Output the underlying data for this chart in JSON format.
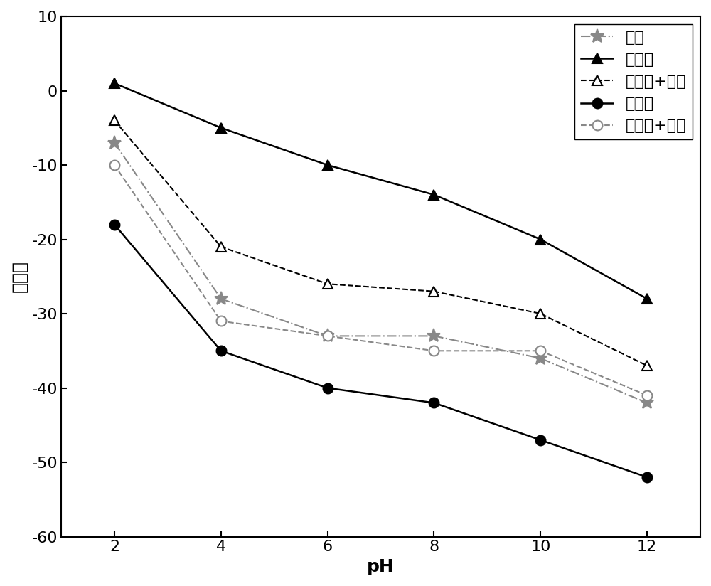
{
  "title": "",
  "xlabel": "pH",
  "ylabel": "动电位",
  "xlim": [
    1,
    13
  ],
  "ylim": [
    -60,
    10
  ],
  "xticks": [
    2,
    4,
    6,
    8,
    10,
    12
  ],
  "yticks": [
    10,
    0,
    -10,
    -20,
    -30,
    -40,
    -50,
    -60
  ],
  "ph": [
    2,
    4,
    6,
    8,
    10,
    12
  ],
  "series": {
    "果胶": {
      "values": [
        -7,
        -28,
        -33,
        -33,
        -36,
        -42
      ],
      "color": "#888888",
      "linestyle": "-.",
      "marker": "star",
      "filled": true,
      "linewidth": 1.5
    },
    "方铅矿": {
      "values": [
        1,
        -5,
        -10,
        -14,
        -20,
        -28
      ],
      "color": "#000000",
      "linestyle": "-",
      "marker": "^",
      "filled": true,
      "linewidth": 1.8
    },
    "方铅矿+果胶": {
      "values": [
        -4,
        -21,
        -26,
        -27,
        -30,
        -37
      ],
      "color": "#000000",
      "linestyle": "--",
      "marker": "^",
      "filled": false,
      "linewidth": 1.5
    },
    "闪锌矿": {
      "values": [
        -18,
        -35,
        -40,
        -42,
        -47,
        -52
      ],
      "color": "#000000",
      "linestyle": "-",
      "marker": "o",
      "filled": true,
      "linewidth": 1.8
    },
    "闪锌矿+果胶": {
      "values": [
        -10,
        -31,
        -33,
        -35,
        -35,
        -41
      ],
      "color": "#888888",
      "linestyle": "--",
      "marker": "o",
      "filled": false,
      "linewidth": 1.5
    }
  },
  "legend_order": [
    "果胶",
    "方铅矿",
    "方铅矿+果胶",
    "闪锌矿",
    "闪锌矿+果胶"
  ],
  "background_color": "#ffffff",
  "font_size_labels": 18,
  "font_size_ticks": 16,
  "font_size_legend": 16
}
